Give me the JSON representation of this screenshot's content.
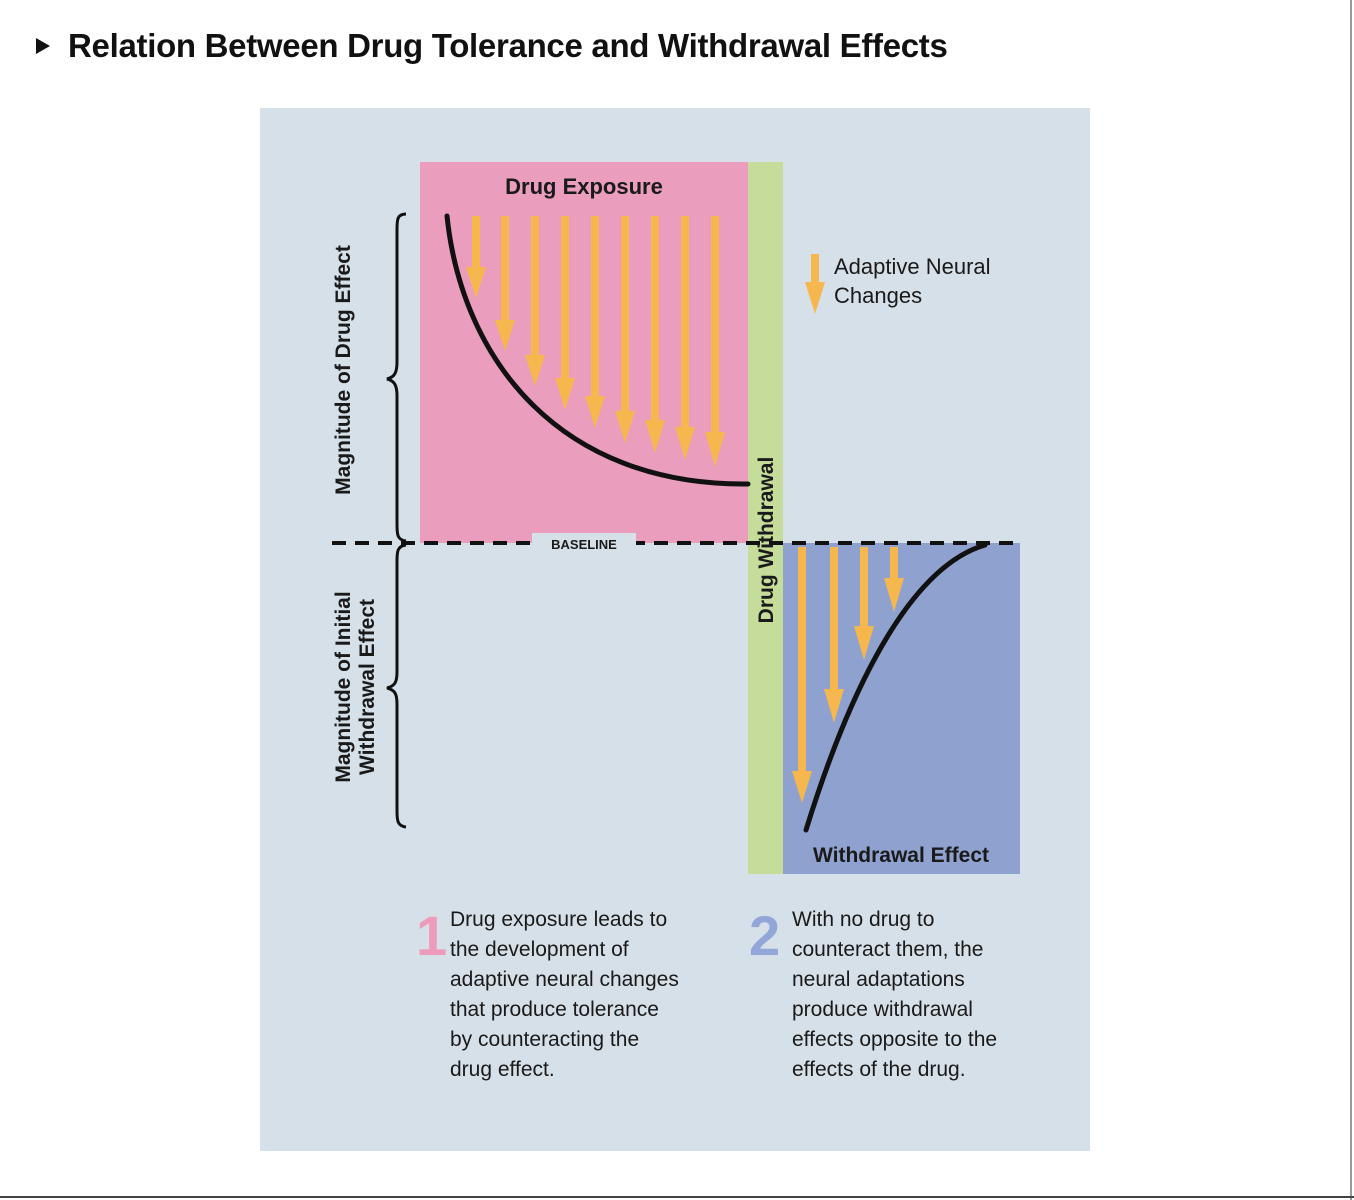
{
  "page": {
    "title": "Relation Between Drug Tolerance and Withdrawal Effects",
    "bullet_icon": "triangle-right-icon"
  },
  "figure": {
    "exposure_label": "Drug Exposure",
    "withdrawal_bar_label": "Drug Withdrawal",
    "withdrawal_effect_label": "Withdrawal Effect",
    "baseline_label": "BASELINE",
    "legend": {
      "icon": "orange-down-arrow-icon",
      "line1": "Adaptive Neural",
      "line2": "Changes"
    },
    "y_axis_upper": "Magnitude of Drug Effect",
    "y_axis_lower_line1": "Magnitude of Initial",
    "y_axis_lower_line2": "Withdrawal Effect",
    "steps": [
      {
        "number": "1",
        "lines": [
          "Drug exposure leads to",
          "the development of",
          "adaptive neural changes",
          "that produce tolerance",
          "by counteracting the",
          "drug effect."
        ]
      },
      {
        "number": "2",
        "lines": [
          "With no drug to",
          "counteract them, the",
          "neural adaptations",
          "produce withdrawal",
          "effects opposite to the",
          "effects of the drug."
        ]
      }
    ],
    "colors": {
      "panel_background": "#d6e0e8",
      "exposure_fill": "#eb9dbd",
      "withdrawal_bar_fill": "#c5dc9a",
      "withdrawal_effect_fill": "#8fa1cf",
      "arrow": "#f5b74e",
      "step1_number": "#ee9bbb",
      "step2_number": "#93a6d8"
    }
  }
}
